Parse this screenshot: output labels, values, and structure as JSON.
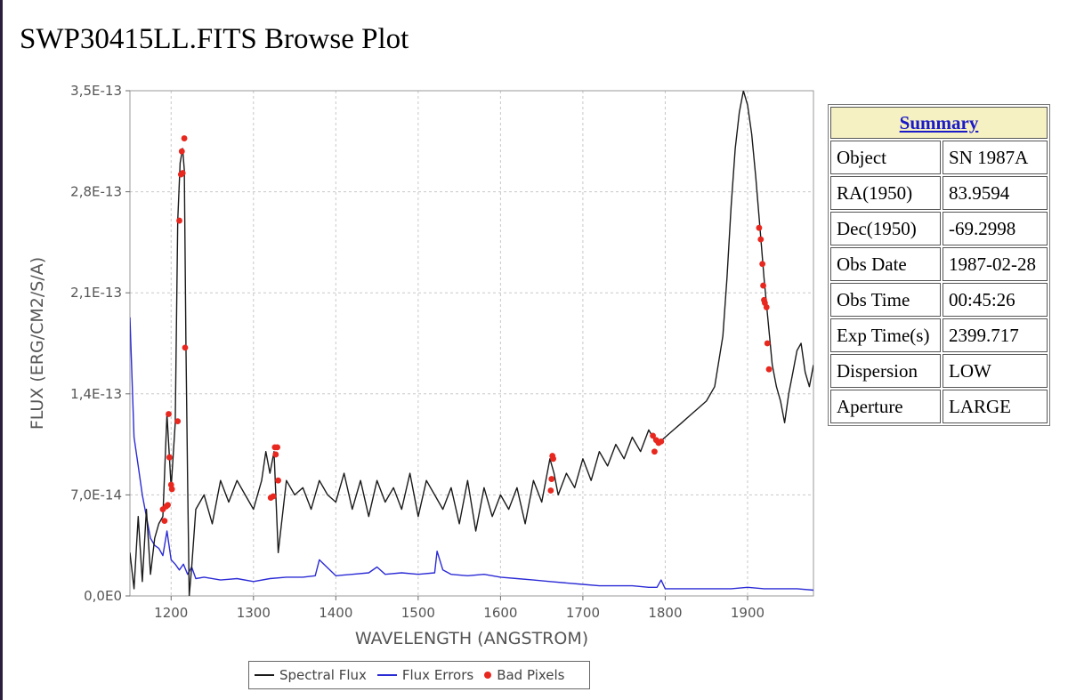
{
  "page": {
    "title": "SWP30415LL.FITS Browse Plot"
  },
  "summary": {
    "header": "Summary",
    "rows": [
      {
        "label": "Object",
        "value": "SN 1987A"
      },
      {
        "label": "RA(1950)",
        "value": "83.9594"
      },
      {
        "label": "Dec(1950)",
        "value": "-69.2998"
      },
      {
        "label": "Obs Date",
        "value": "1987-02-28"
      },
      {
        "label": "Obs Time",
        "value": "00:45:26"
      },
      {
        "label": "Exp Time(s)",
        "value": "2399.717"
      },
      {
        "label": "Dispersion",
        "value": "LOW"
      },
      {
        "label": "Aperture",
        "value": "LARGE"
      }
    ]
  },
  "colors": {
    "flux": "#1a1a1a",
    "errors": "#2b2bd6",
    "bad": "#e8271f",
    "grid": "#c8c8c8",
    "axis": "#6a6a6a",
    "header_bg": "#f6f1c2"
  },
  "chart_data": {
    "type": "line",
    "xlabel": "WAVELENGTH (ANGSTROM)",
    "ylabel": "FLUX (ERG/CM2/S/A)",
    "xlim": [
      1150,
      1980
    ],
    "ylim": [
      0,
      3.5e-13
    ],
    "x_ticks": [
      1200,
      1300,
      1400,
      1500,
      1600,
      1700,
      1800,
      1900
    ],
    "x_tick_labels": [
      "1200",
      "1300",
      "1400",
      "1500",
      "1600",
      "1700",
      "1800",
      "1900"
    ],
    "y_ticks": [
      0,
      7e-14,
      1.4e-13,
      2.1e-13,
      2.8e-13,
      3.5e-13
    ],
    "y_tick_labels": [
      "0,0E0",
      "7,0E-14",
      "1,4E-13",
      "2,1E-13",
      "2,8E-13",
      "3,5E-13"
    ],
    "grid": true,
    "legend_position": "bottom",
    "series": [
      {
        "name": "Spectral Flux",
        "x": [
          1150,
          1155,
          1160,
          1165,
          1170,
          1175,
          1180,
          1185,
          1190,
          1195,
          1200,
          1205,
          1208,
          1211,
          1214,
          1216,
          1218,
          1220,
          1222,
          1225,
          1230,
          1240,
          1250,
          1260,
          1270,
          1280,
          1290,
          1300,
          1310,
          1315,
          1320,
          1325,
          1330,
          1340,
          1350,
          1360,
          1370,
          1380,
          1390,
          1400,
          1410,
          1420,
          1430,
          1440,
          1450,
          1460,
          1470,
          1480,
          1490,
          1500,
          1510,
          1520,
          1530,
          1540,
          1550,
          1560,
          1570,
          1580,
          1590,
          1600,
          1610,
          1620,
          1630,
          1640,
          1650,
          1660,
          1665,
          1670,
          1680,
          1690,
          1700,
          1710,
          1720,
          1730,
          1740,
          1750,
          1760,
          1770,
          1780,
          1790,
          1800,
          1810,
          1820,
          1830,
          1840,
          1850,
          1860,
          1870,
          1875,
          1880,
          1885,
          1890,
          1895,
          1900,
          1905,
          1910,
          1915,
          1920,
          1925,
          1930,
          1935,
          1940,
          1945,
          1950,
          1955,
          1960,
          1965,
          1970,
          1975,
          1980
        ],
        "y": [
          3e-14,
          5e-15,
          5.5e-14,
          1e-14,
          6e-14,
          1.5e-14,
          4e-14,
          5e-14,
          5.5e-14,
          1.26e-13,
          7.5e-14,
          1.2e-13,
          2.6e-13,
          3e-13,
          3.1e-13,
          2.95e-13,
          1.75e-13,
          8e-14,
          0.0,
          2e-14,
          6e-14,
          7e-14,
          5e-14,
          8e-14,
          6.5e-14,
          8e-14,
          7e-14,
          6e-14,
          8e-14,
          1e-13,
          8.5e-14,
          1e-13,
          3e-14,
          8e-14,
          7e-14,
          7.5e-14,
          6e-14,
          8e-14,
          7e-14,
          6.5e-14,
          8.5e-14,
          6e-14,
          8e-14,
          5.5e-14,
          8e-14,
          6.5e-14,
          7.5e-14,
          6e-14,
          8.5e-14,
          5.5e-14,
          8e-14,
          7e-14,
          6e-14,
          7.5e-14,
          5e-14,
          8e-14,
          4.5e-14,
          7.5e-14,
          5.5e-14,
          7e-14,
          6e-14,
          7.5e-14,
          5e-14,
          8e-14,
          6.5e-14,
          9.5e-14,
          8.5e-14,
          7e-14,
          8.5e-14,
          7.5e-14,
          9.5e-14,
          8e-14,
          1e-13,
          9e-14,
          1.05e-13,
          9.5e-14,
          1.1e-13,
          1e-13,
          1.15e-13,
          1.05e-13,
          1.1e-13,
          1.15e-13,
          1.2e-13,
          1.25e-13,
          1.3e-13,
          1.35e-13,
          1.45e-13,
          1.8e-13,
          2.2e-13,
          2.7e-13,
          3.1e-13,
          3.35e-13,
          3.5e-13,
          3.4e-13,
          3.2e-13,
          2.9e-13,
          2.55e-13,
          2.2e-13,
          1.9e-13,
          1.6e-13,
          1.45e-13,
          1.35e-13,
          1.2e-13,
          1.4e-13,
          1.55e-13,
          1.7e-13,
          1.75e-13,
          1.55e-13,
          1.45e-13,
          1.6e-13
        ]
      },
      {
        "name": "Flux Errors",
        "x": [
          1150,
          1155,
          1160,
          1165,
          1170,
          1175,
          1180,
          1185,
          1190,
          1195,
          1200,
          1205,
          1210,
          1215,
          1220,
          1225,
          1230,
          1240,
          1260,
          1280,
          1300,
          1320,
          1340,
          1360,
          1375,
          1380,
          1400,
          1420,
          1440,
          1450,
          1460,
          1480,
          1500,
          1520,
          1523,
          1530,
          1540,
          1560,
          1580,
          1600,
          1620,
          1640,
          1660,
          1680,
          1700,
          1720,
          1740,
          1760,
          1780,
          1790,
          1795,
          1800,
          1820,
          1840,
          1860,
          1880,
          1900,
          1920,
          1940,
          1960,
          1980
        ],
        "y": [
          1.93e-13,
          1.1e-13,
          9e-14,
          7e-14,
          5.5e-14,
          4e-14,
          3.5e-14,
          3.3e-14,
          2.8e-14,
          4.5e-14,
          2.5e-14,
          2.2e-14,
          1.8e-14,
          2.2e-14,
          1.5e-14,
          2e-14,
          1.2e-14,
          1.3e-14,
          1.1e-14,
          1.2e-14,
          1e-14,
          1.2e-14,
          1.3e-14,
          1.3e-14,
          1.4e-14,
          2.5e-14,
          1.4e-14,
          1.5e-14,
          1.6e-14,
          2e-14,
          1.5e-14,
          1.6e-14,
          1.5e-14,
          1.6e-14,
          3.1e-14,
          1.8e-14,
          1.5e-14,
          1.4e-14,
          1.5e-14,
          1.3e-14,
          1.2e-14,
          1.1e-14,
          1e-14,
          9e-15,
          8e-15,
          7e-15,
          7e-15,
          7e-15,
          6e-15,
          6e-15,
          1.1e-14,
          5e-15,
          5e-15,
          5e-15,
          5e-15,
          5e-15,
          6e-15,
          5e-15,
          5e-15,
          5e-15,
          4e-15
        ]
      },
      {
        "name": "Bad Pixels",
        "x": [
          1190,
          1192,
          1194,
          1196,
          1197,
          1198,
          1200,
          1201,
          1208,
          1210,
          1212,
          1213,
          1214,
          1216,
          1217,
          1321,
          1324,
          1326,
          1327,
          1329,
          1330,
          1661,
          1662,
          1663,
          1664,
          1785,
          1787,
          1789,
          1792,
          1795,
          1914,
          1916,
          1918,
          1919,
          1920,
          1921,
          1923,
          1924,
          1926
        ],
        "y": [
          6e-14,
          5.2e-14,
          6.2e-14,
          6.3e-14,
          1.26e-13,
          9.6e-14,
          7.7e-14,
          7.4e-14,
          1.21e-13,
          2.6e-13,
          2.92e-13,
          3.08e-13,
          2.93e-13,
          3.17e-13,
          1.72e-13,
          6.8e-14,
          6.9e-14,
          1.03e-13,
          9.8e-14,
          1.03e-13,
          8e-14,
          7.3e-14,
          8.1e-14,
          9.7e-14,
          9.5e-14,
          1.11e-13,
          1e-13,
          1.08e-13,
          1.06e-13,
          1.07e-13,
          2.55e-13,
          2.47e-13,
          2.3e-13,
          2.15e-13,
          2.05e-13,
          2.03e-13,
          2e-13,
          1.75e-13,
          1.57e-13
        ]
      }
    ]
  }
}
